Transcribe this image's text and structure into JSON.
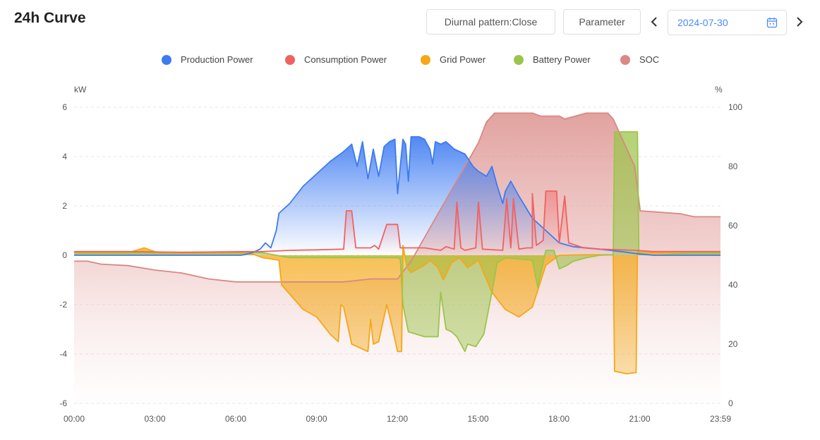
{
  "header": {
    "title": "24h Curve",
    "diurnal_label": "Diurnal pattern:Close",
    "parameter_label": "Parameter",
    "prev_icon": "chevron-left-icon",
    "next_icon": "chevron-right-icon",
    "date": "2024-07-30",
    "calendar_icon": "calendar-icon"
  },
  "chart_data": {
    "type": "area",
    "legend_position": "top-center",
    "grid": true,
    "y_left": {
      "unit": "kW",
      "range": [
        -6,
        6
      ],
      "ticks": [
        "6",
        "4",
        "2",
        "0",
        "-2",
        "-4",
        "-6"
      ]
    },
    "y_right": {
      "unit": "%",
      "range": [
        0,
        100
      ],
      "ticks": [
        "100",
        "80",
        "60",
        "40",
        "20",
        "0"
      ]
    },
    "x_ticks": [
      "00:00",
      "03:00",
      "06:00",
      "09:00",
      "12:00",
      "15:00",
      "18:00",
      "21:00",
      "23:59"
    ],
    "x_domain_hours": [
      0,
      23.98
    ],
    "series": [
      {
        "name": "Production Power",
        "color": "#3d7bf2",
        "axis": "left",
        "points": [
          [
            0,
            0
          ],
          [
            6.2,
            0
          ],
          [
            6.6,
            0.1
          ],
          [
            6.9,
            0.25
          ],
          [
            7.1,
            0.5
          ],
          [
            7.3,
            0.3
          ],
          [
            7.5,
            1.0
          ],
          [
            7.6,
            1.7
          ],
          [
            8.0,
            2.1
          ],
          [
            8.5,
            2.8
          ],
          [
            9.0,
            3.3
          ],
          [
            9.5,
            3.8
          ],
          [
            10.0,
            4.2
          ],
          [
            10.3,
            4.5
          ],
          [
            10.5,
            3.6
          ],
          [
            10.7,
            4.6
          ],
          [
            10.9,
            3.1
          ],
          [
            11.1,
            4.3
          ],
          [
            11.3,
            3.2
          ],
          [
            11.5,
            4.4
          ],
          [
            11.7,
            4.6
          ],
          [
            11.9,
            4.7
          ],
          [
            12.0,
            2.5
          ],
          [
            12.2,
            4.7
          ],
          [
            12.3,
            4.5
          ],
          [
            12.4,
            3.0
          ],
          [
            12.5,
            4.8
          ],
          [
            12.8,
            4.8
          ],
          [
            13.0,
            4.7
          ],
          [
            13.2,
            4.3
          ],
          [
            13.3,
            3.7
          ],
          [
            13.4,
            4.6
          ],
          [
            13.6,
            4.5
          ],
          [
            13.8,
            4.6
          ],
          [
            14.1,
            4.3
          ],
          [
            14.5,
            4.1
          ],
          [
            14.8,
            3.6
          ],
          [
            15.0,
            3.4
          ],
          [
            15.3,
            3.2
          ],
          [
            15.5,
            3.6
          ],
          [
            15.7,
            2.8
          ],
          [
            15.9,
            2.1
          ],
          [
            16.0,
            2.6
          ],
          [
            16.2,
            3.0
          ],
          [
            16.5,
            2.4
          ],
          [
            17.0,
            1.5
          ],
          [
            17.5,
            1.0
          ],
          [
            18.0,
            0.5
          ],
          [
            18.5,
            0.35
          ],
          [
            19.5,
            0.25
          ],
          [
            20.3,
            0.15
          ],
          [
            21.0,
            0.05
          ],
          [
            21.5,
            0
          ],
          [
            23.98,
            0
          ]
        ]
      },
      {
        "name": "Consumption Power",
        "color": "#f06262",
        "axis": "left",
        "points": [
          [
            0,
            0.15
          ],
          [
            2,
            0.15
          ],
          [
            4,
            0.12
          ],
          [
            6.5,
            0.15
          ],
          [
            7,
            0.15
          ],
          [
            8,
            0.2
          ],
          [
            9,
            0.22
          ],
          [
            10,
            0.25
          ],
          [
            10.1,
            1.8
          ],
          [
            10.3,
            1.8
          ],
          [
            10.45,
            0.3
          ],
          [
            11,
            0.3
          ],
          [
            11.15,
            0.4
          ],
          [
            11.3,
            0.25
          ],
          [
            11.6,
            1.25
          ],
          [
            12.0,
            1.25
          ],
          [
            12.1,
            0.3
          ],
          [
            13.0,
            0.3
          ],
          [
            13.6,
            0.2
          ],
          [
            13.8,
            0.35
          ],
          [
            14.1,
            0.25
          ],
          [
            14.2,
            2.15
          ],
          [
            14.35,
            0.3
          ],
          [
            14.5,
            0.2
          ],
          [
            14.9,
            0.3
          ],
          [
            15.0,
            2.15
          ],
          [
            15.15,
            0.25
          ],
          [
            15.9,
            0.2
          ],
          [
            16.05,
            2.3
          ],
          [
            16.2,
            0.3
          ],
          [
            16.3,
            2.3
          ],
          [
            16.5,
            0.25
          ],
          [
            16.8,
            0.3
          ],
          [
            17.0,
            0.3
          ],
          [
            17.0,
            2.5
          ],
          [
            17.15,
            0.4
          ],
          [
            17.4,
            0.6
          ],
          [
            17.5,
            2.6
          ],
          [
            17.9,
            2.6
          ],
          [
            18.0,
            0.5
          ],
          [
            18.2,
            2.4
          ],
          [
            18.35,
            0.5
          ],
          [
            18.9,
            0.3
          ],
          [
            19.5,
            0.25
          ],
          [
            20.8,
            0.2
          ],
          [
            21.5,
            0.15
          ],
          [
            23.98,
            0.15
          ]
        ]
      },
      {
        "name": "Grid Power",
        "color": "#f4a816",
        "axis": "left",
        "points": [
          [
            0,
            0.1
          ],
          [
            2.0,
            0.1
          ],
          [
            2.6,
            0.3
          ],
          [
            3.1,
            0.1
          ],
          [
            6.5,
            0.1
          ],
          [
            7.0,
            -0.1
          ],
          [
            7.6,
            -0.2
          ],
          [
            7.7,
            -1.2
          ],
          [
            8.5,
            -2.2
          ],
          [
            9.0,
            -2.5
          ],
          [
            9.5,
            -3.2
          ],
          [
            9.8,
            -3.5
          ],
          [
            9.9,
            -2.0
          ],
          [
            10.0,
            -2.1
          ],
          [
            10.3,
            -3.6
          ],
          [
            10.5,
            -3.7
          ],
          [
            10.9,
            -3.9
          ],
          [
            11.0,
            -2.6
          ],
          [
            11.1,
            -3.6
          ],
          [
            11.3,
            -3.5
          ],
          [
            11.6,
            -2.0
          ],
          [
            11.8,
            -2.9
          ],
          [
            12.0,
            -3.9
          ],
          [
            12.15,
            -3.9
          ],
          [
            12.2,
            0.4
          ],
          [
            12.35,
            -0.5
          ],
          [
            12.5,
            -0.7
          ],
          [
            13.0,
            -0.4
          ],
          [
            13.2,
            -0.2
          ],
          [
            13.5,
            -0.5
          ],
          [
            13.7,
            -1.0
          ],
          [
            14.0,
            -0.3
          ],
          [
            14.3,
            -0.1
          ],
          [
            14.6,
            -0.5
          ],
          [
            15.0,
            -0.2
          ],
          [
            15.5,
            -1.5
          ],
          [
            16.0,
            -2.2
          ],
          [
            16.5,
            -2.5
          ],
          [
            17.0,
            -2.1
          ],
          [
            17.5,
            -0.4
          ],
          [
            18.0,
            0.0
          ],
          [
            19.0,
            0.02
          ],
          [
            20.0,
            0.02
          ],
          [
            20.05,
            -4.7
          ],
          [
            20.5,
            -4.8
          ],
          [
            20.85,
            -4.75
          ],
          [
            20.9,
            0.2
          ],
          [
            21.5,
            0.1
          ],
          [
            22.5,
            0.12
          ],
          [
            23.0,
            0.12
          ],
          [
            23.98,
            0.12
          ]
        ]
      },
      {
        "name": "Battery Power",
        "color": "#9bc54a",
        "axis": "left",
        "points": [
          [
            0,
            0.12
          ],
          [
            6.5,
            0.12
          ],
          [
            7.0,
            0.1
          ],
          [
            8,
            -0.1
          ],
          [
            10.0,
            -0.1
          ],
          [
            12.0,
            -0.1
          ],
          [
            12.1,
            -0.15
          ],
          [
            12.2,
            -2.0
          ],
          [
            12.4,
            -3.1
          ],
          [
            13.0,
            -3.3
          ],
          [
            13.5,
            -3.3
          ],
          [
            13.6,
            -1.5
          ],
          [
            13.8,
            -3.0
          ],
          [
            14.0,
            -3.1
          ],
          [
            14.2,
            -3.3
          ],
          [
            14.5,
            -3.9
          ],
          [
            14.6,
            -3.6
          ],
          [
            14.9,
            -3.7
          ],
          [
            15.2,
            -3.2
          ],
          [
            15.5,
            -1.5
          ],
          [
            15.7,
            -0.3
          ],
          [
            16.0,
            -0.1
          ],
          [
            16.5,
            -0.15
          ],
          [
            17.0,
            -0.2
          ],
          [
            17.2,
            -1.3
          ],
          [
            17.5,
            0.2
          ],
          [
            17.8,
            0.2
          ],
          [
            18.0,
            -0.55
          ],
          [
            18.3,
            -0.4
          ],
          [
            18.5,
            -0.25
          ],
          [
            19.0,
            -0.1
          ],
          [
            19.5,
            0.0
          ],
          [
            20.0,
            0.02
          ],
          [
            20.05,
            5.0
          ],
          [
            20.9,
            5.0
          ],
          [
            20.95,
            0.1
          ],
          [
            21.5,
            0.0
          ],
          [
            23.0,
            0.1
          ],
          [
            23.98,
            0.1
          ]
        ]
      },
      {
        "name": "SOC",
        "color": "#d98884",
        "axis": "right",
        "points": [
          [
            0,
            48
          ],
          [
            0.5,
            48
          ],
          [
            1.0,
            47
          ],
          [
            2.0,
            46.5
          ],
          [
            3.0,
            45
          ],
          [
            4.0,
            44
          ],
          [
            5.0,
            42
          ],
          [
            6.0,
            41
          ],
          [
            8.0,
            41
          ],
          [
            10.0,
            41
          ],
          [
            11.0,
            42
          ],
          [
            12.0,
            42
          ],
          [
            12.5,
            48
          ],
          [
            13.0,
            56
          ],
          [
            13.5,
            64
          ],
          [
            14.0,
            72
          ],
          [
            14.5,
            80
          ],
          [
            15.0,
            88
          ],
          [
            15.3,
            95
          ],
          [
            15.6,
            98
          ],
          [
            16.0,
            98
          ],
          [
            17.0,
            98
          ],
          [
            17.3,
            97
          ],
          [
            18.0,
            97
          ],
          [
            18.2,
            96
          ],
          [
            19.0,
            98
          ],
          [
            19.8,
            98
          ],
          [
            20.0,
            96
          ],
          [
            20.3,
            90
          ],
          [
            20.8,
            80
          ],
          [
            21.0,
            65
          ],
          [
            22.5,
            64
          ],
          [
            23.0,
            63
          ],
          [
            23.98,
            63
          ]
        ]
      }
    ]
  }
}
